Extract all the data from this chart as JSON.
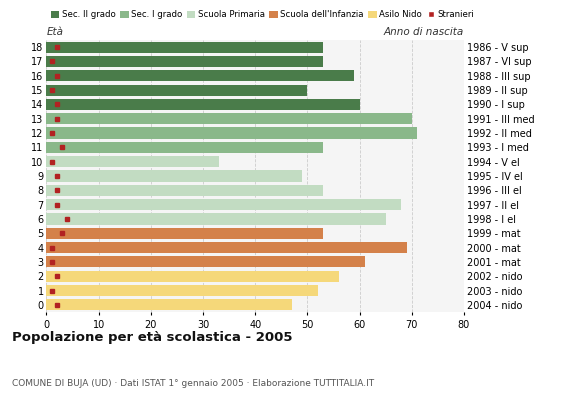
{
  "ages": [
    18,
    17,
    16,
    15,
    14,
    13,
    12,
    11,
    10,
    9,
    8,
    7,
    6,
    5,
    4,
    3,
    2,
    1,
    0
  ],
  "anno": [
    "1986 - V sup",
    "1987 - VI sup",
    "1988 - III sup",
    "1989 - II sup",
    "1990 - I sup",
    "1991 - III med",
    "1992 - II med",
    "1993 - I med",
    "1994 - V el",
    "1995 - IV el",
    "1996 - III el",
    "1997 - II el",
    "1998 - I el",
    "1999 - mat",
    "2000 - mat",
    "2001 - mat",
    "2002 - nido",
    "2003 - nido",
    "2004 - nido"
  ],
  "bar_values": [
    53,
    53,
    59,
    50,
    60,
    70,
    71,
    53,
    33,
    49,
    53,
    68,
    65,
    53,
    69,
    61,
    56,
    52,
    47
  ],
  "stranieri": [
    2,
    1,
    2,
    1,
    2,
    2,
    1,
    3,
    1,
    2,
    2,
    2,
    4,
    3,
    1,
    1,
    2,
    1,
    2
  ],
  "bar_colors_by_age": {
    "18": "#4a7c4a",
    "17": "#4a7c4a",
    "16": "#4a7c4a",
    "15": "#4a7c4a",
    "14": "#4a7c4a",
    "13": "#8ab88a",
    "12": "#8ab88a",
    "11": "#8ab88a",
    "10": "#c2dcc2",
    "9": "#c2dcc2",
    "8": "#c2dcc2",
    "7": "#c2dcc2",
    "6": "#c2dcc2",
    "5": "#d4814a",
    "4": "#d4814a",
    "3": "#d4814a",
    "2": "#f5d87a",
    "1": "#f5d87a",
    "0": "#f5d87a"
  },
  "legend_colors": [
    "#4a7c4a",
    "#8ab88a",
    "#c2dcc2",
    "#d4814a",
    "#f5d87a"
  ],
  "legend_labels": [
    "Sec. II grado",
    "Sec. I grado",
    "Scuola Primaria",
    "Scuola dell'Infanzia",
    "Asilo Nido",
    "Stranieri"
  ],
  "stranieri_color": "#b22222",
  "title": "Popolazione per età scolastica - 2005",
  "subtitle": "COMUNE DI BUJA (UD) · Dati ISTAT 1° gennaio 2005 · Elaborazione TUTTITALIA.IT",
  "xlabel_eta": "Età",
  "xlabel_anno": "Anno di nascita",
  "xlim": [
    0,
    80
  ],
  "xticks": [
    0,
    10,
    20,
    30,
    40,
    50,
    60,
    70,
    80
  ],
  "bg_color": "#ffffff",
  "plot_bg": "#f5f5f5",
  "grid_color": "#cccccc",
  "bar_height": 0.78
}
